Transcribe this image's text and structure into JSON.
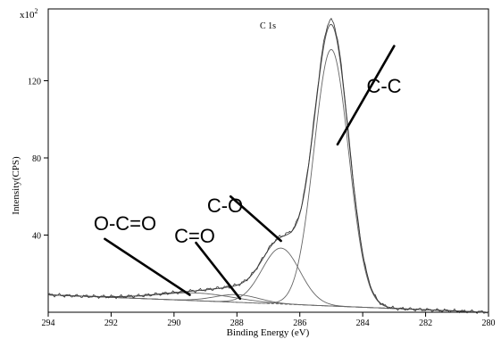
{
  "chart_data": {
    "type": "line",
    "title": "C 1s",
    "xlabel": "Binding Energy (eV)",
    "ylabel": "Intensity(CPS)",
    "y_multiplier_prefix": "x10",
    "y_multiplier_exp": "2",
    "xlim": [
      294,
      280
    ],
    "x_reversed": true,
    "ylim": [
      0,
      150
    ],
    "x_ticks": [
      "294",
      "292",
      "290",
      "288",
      "286",
      "284",
      "282",
      "280"
    ],
    "x_tick_values": [
      294,
      292,
      290,
      288,
      286,
      284,
      282,
      280
    ],
    "y_ticks": [
      "40",
      "80",
      "120"
    ],
    "y_tick_values": [
      40,
      80,
      120
    ],
    "grid": false,
    "background_line": {
      "x": [
        294,
        280
      ],
      "y": [
        9,
        0
      ]
    },
    "components": [
      {
        "x0": 285.0,
        "height": 133,
        "sigma": 0.55
      },
      {
        "x0": 286.6,
        "height": 29,
        "sigma": 0.6
      },
      {
        "x0": 288.0,
        "height": 4,
        "sigma": 0.7
      },
      {
        "x0": 289.3,
        "height": 4,
        "sigma": 1.2
      }
    ],
    "envelope_max": 146,
    "annotations": [
      {
        "text": "C-C",
        "line": [
          [
            284.8,
            87
          ],
          [
            283.0,
            138
          ]
        ]
      },
      {
        "text": "C-O",
        "line": [
          [
            286.6,
            37
          ],
          [
            288.2,
            60
          ]
        ]
      },
      {
        "text": "C=O",
        "line": [
          [
            287.9,
            7
          ],
          [
            289.3,
            36
          ]
        ]
      },
      {
        "text": "O-C=O",
        "line": [
          [
            289.5,
            9
          ],
          [
            292.2,
            38
          ]
        ]
      }
    ]
  }
}
